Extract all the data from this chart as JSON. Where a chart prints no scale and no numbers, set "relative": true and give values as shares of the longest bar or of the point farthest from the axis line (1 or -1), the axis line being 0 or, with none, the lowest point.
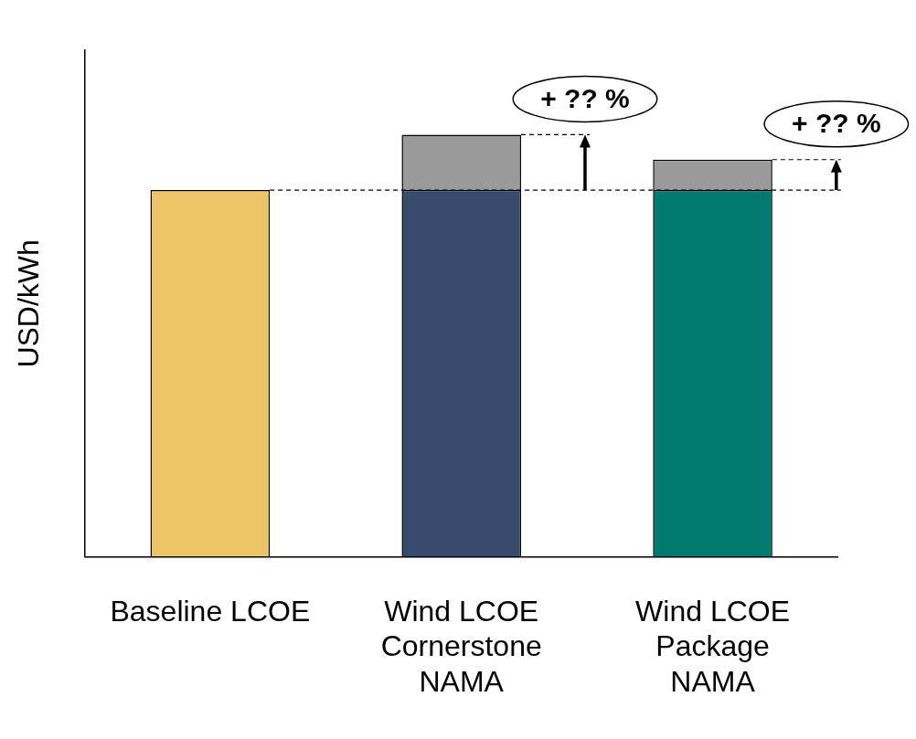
{
  "chart_data": {
    "type": "bar",
    "relative": true,
    "stacked": true,
    "ylabel": "USD/kWh",
    "grid": false,
    "legend": false,
    "categories": [
      "Baseline LCOE",
      "Wind LCOE Cornerstone NAMA",
      "Wind LCOE Package NAMA"
    ],
    "series": [
      {
        "colors": [
          "#ecc568",
          "#374c6c",
          "#007a6e"
        ],
        "values": [
          0.869,
          0.869,
          0.869
        ]
      },
      {
        "color": "#9a9a9a",
        "values": [
          null,
          0.131,
          0.072
        ]
      }
    ],
    "ref_lines": [
      {
        "axis": "y",
        "value": 0.869,
        "line_style": "dashed",
        "color": "#000000"
      }
    ],
    "annotations": [
      "+ ?? %",
      "+ ?? %"
    ]
  }
}
